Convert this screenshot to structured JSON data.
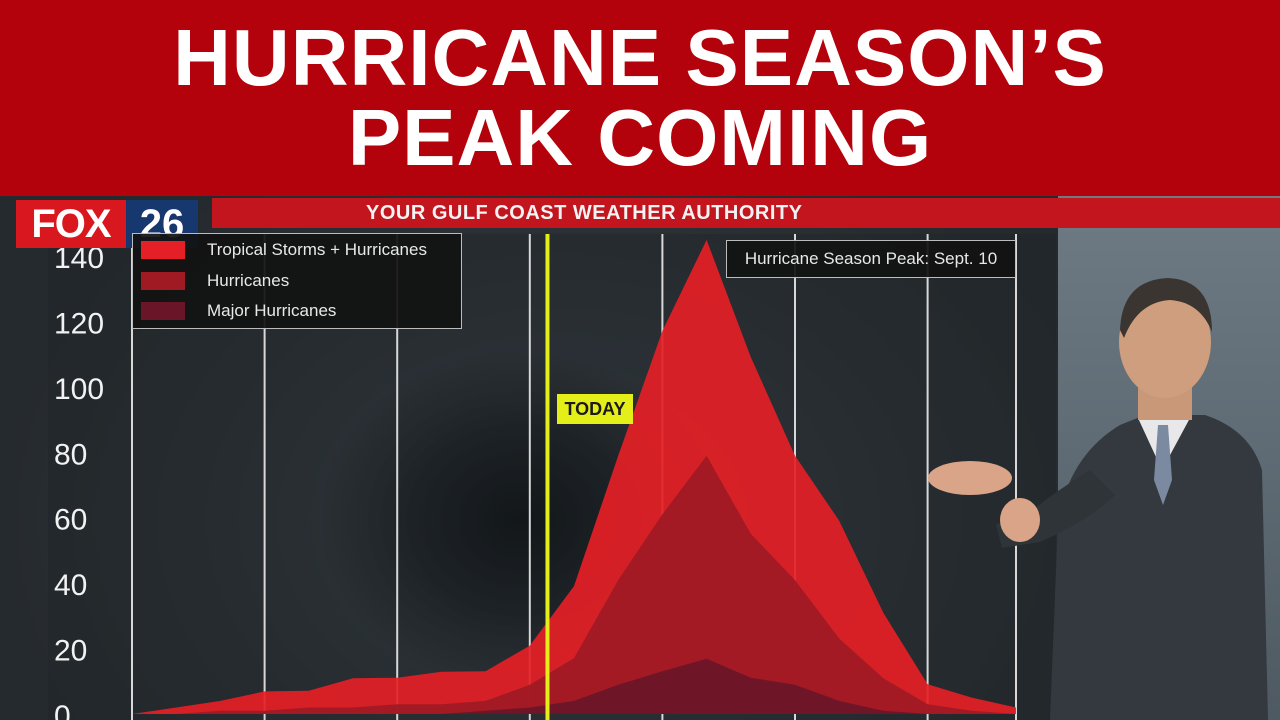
{
  "headline": {
    "line1": "HURRICANE SEASON’S",
    "line2": "PEAK COMING"
  },
  "station": {
    "name": "FOX",
    "channel": "26",
    "slogan": "YOUR GULF COAST WEATHER AUTHORITY",
    "brand_red": "#d9171f",
    "brand_blue": "#17386e"
  },
  "peak_label": "Hurricane Season Peak: Sept. 10",
  "today_label": "TODAY",
  "colors": {
    "banner": "#b3020b",
    "subbar": "#c3151e",
    "today_line": "#e4ee18",
    "tropical": "#e51f26",
    "hurricanes": "#a01a24",
    "major": "#6b1628"
  },
  "chart_data": {
    "type": "area",
    "ylim": [
      0,
      140
    ],
    "yticks": [
      0,
      20,
      40,
      60,
      80,
      100,
      120,
      140
    ],
    "grid": "vertical",
    "legend_position": "top-left",
    "series": [
      {
        "name": "Tropical Storms + Hurricanes",
        "color": "#e51f26",
        "x": [
          0,
          5,
          10,
          15,
          20,
          25,
          30,
          35,
          40,
          45,
          50,
          55,
          60,
          65,
          70,
          75,
          80,
          85,
          90,
          95,
          100
        ],
        "values": [
          0,
          2,
          4,
          6,
          8,
          10,
          12,
          12,
          14,
          20,
          40,
          78,
          118,
          144,
          110,
          78,
          60,
          30,
          10,
          5,
          2
        ]
      },
      {
        "name": "Hurricanes",
        "color": "#a01a24",
        "x": [
          0,
          5,
          10,
          15,
          20,
          25,
          30,
          35,
          40,
          45,
          50,
          55,
          60,
          65,
          70,
          75,
          80,
          85,
          90,
          95,
          100
        ],
        "values": [
          0,
          0,
          1,
          1,
          2,
          2,
          3,
          3,
          4,
          8,
          18,
          40,
          62,
          78,
          56,
          40,
          24,
          10,
          3,
          1,
          0
        ]
      },
      {
        "name": "Major Hurricanes",
        "color": "#6b1628",
        "x": [
          0,
          5,
          10,
          15,
          20,
          25,
          30,
          35,
          40,
          45,
          50,
          55,
          60,
          65,
          70,
          75,
          80,
          85,
          90,
          95,
          100
        ],
        "values": [
          0,
          0,
          0,
          0,
          0,
          0,
          0,
          0,
          1,
          2,
          4,
          8,
          14,
          16,
          12,
          8,
          4,
          1,
          0,
          0,
          0
        ]
      }
    ],
    "today_x": 47,
    "vertical_grid_x": [
      0,
      15,
      30,
      45,
      60,
      75,
      90,
      100
    ]
  }
}
